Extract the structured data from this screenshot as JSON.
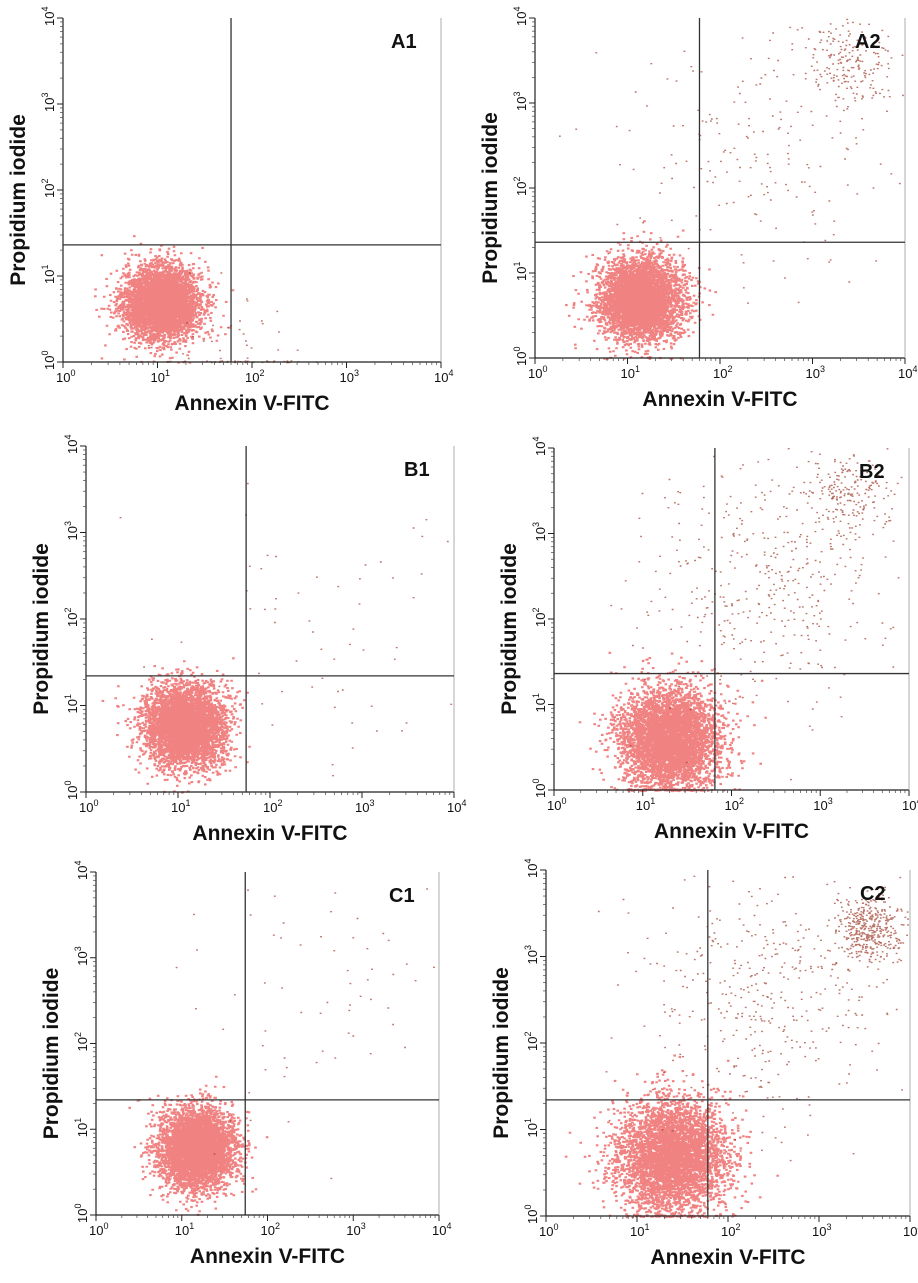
{
  "figure": {
    "x_axis_label": "Annexin V-FITC",
    "y_axis_label": "Propidium iodide"
  },
  "chart_data": [
    {
      "type": "scatter",
      "label": "A1",
      "xlabel": "Annexin V-FITC",
      "ylabel": "Propidium iodide",
      "xscale": "log",
      "yscale": "log",
      "xlim": [
        1,
        10000
      ],
      "ylim": [
        1,
        10000
      ],
      "xticks": [
        "10^0",
        "10^1",
        "10^2",
        "10^3",
        "10^4"
      ],
      "yticks": [
        "10^0",
        "10^1",
        "10^2",
        "10^3",
        "10^4"
      ],
      "quadrant_gate": {
        "x": 60,
        "y": 23
      },
      "populations": [
        {
          "center": [
            11,
            5
          ],
          "spread_decades": 0.2,
          "density": "very high"
        },
        {
          "center": [
            60,
            1.1
          ],
          "spread_decades": 0.35,
          "density": "trace"
        }
      ]
    },
    {
      "type": "scatter",
      "label": "A2",
      "xlabel": "Annexin V-FITC",
      "ylabel": "Propidium iodide",
      "xscale": "log",
      "yscale": "log",
      "xlim": [
        1,
        10000
      ],
      "ylim": [
        1,
        10000
      ],
      "xticks": [
        "10^0",
        "10^1",
        "10^2",
        "10^3",
        "10^4"
      ],
      "yticks": [
        "10^0",
        "10^1",
        "10^2",
        "10^3",
        "10^4"
      ],
      "quadrant_gate": {
        "x": 60,
        "y": 23
      },
      "populations": [
        {
          "center": [
            14,
            5
          ],
          "spread_decades": 0.22,
          "density": "very high"
        },
        {
          "center": [
            300,
            300
          ],
          "spread_decades": 0.6,
          "density": "low"
        },
        {
          "center": [
            2500,
            3000
          ],
          "spread_decades": 0.2,
          "density": "low"
        }
      ]
    },
    {
      "type": "scatter",
      "label": "B1",
      "xlabel": "Annexin V-FITC",
      "ylabel": "Propidium iodide",
      "xscale": "log",
      "yscale": "log",
      "xlim": [
        1,
        10000
      ],
      "ylim": [
        1,
        10000
      ],
      "xticks": [
        "10^0",
        "10^1",
        "10^2",
        "10^3",
        "10^4"
      ],
      "yticks": [
        "10^0",
        "10^1",
        "10^2",
        "10^3",
        "10^4"
      ],
      "quadrant_gate": {
        "x": 55,
        "y": 22
      },
      "populations": [
        {
          "center": [
            12,
            6
          ],
          "spread_decades": 0.22,
          "density": "very high"
        },
        {
          "center": [
            500,
            100
          ],
          "spread_decades": 0.8,
          "density": "trace"
        }
      ]
    },
    {
      "type": "scatter",
      "label": "B2",
      "xlabel": "Annexin V-FITC",
      "ylabel": "Propidium iodide",
      "xscale": "log",
      "yscale": "log",
      "xlim": [
        1,
        10000
      ],
      "ylim": [
        1,
        10000
      ],
      "xticks": [
        "10^0",
        "10^1",
        "10^2",
        "10^3",
        "10^4"
      ],
      "yticks": [
        "10^0",
        "10^1",
        "10^2",
        "10^3",
        "10^4"
      ],
      "quadrant_gate": {
        "x": 65,
        "y": 23
      },
      "populations": [
        {
          "center": [
            20,
            4
          ],
          "spread_decades": 0.28,
          "density": "very high"
        },
        {
          "center": [
            300,
            300
          ],
          "spread_decades": 0.6,
          "density": "moderate"
        },
        {
          "center": [
            2000,
            3000
          ],
          "spread_decades": 0.2,
          "density": "low"
        }
      ]
    },
    {
      "type": "scatter",
      "label": "C1",
      "xlabel": "Annexin V-FITC",
      "ylabel": "Propidium iodide",
      "xscale": "log",
      "yscale": "log",
      "xlim": [
        1,
        10000
      ],
      "ylim": [
        1,
        10000
      ],
      "xticks": [
        "10^0",
        "10^1",
        "10^2",
        "10^3",
        "10^4"
      ],
      "yticks": [
        "10^0",
        "10^1",
        "10^2",
        "10^3",
        "10^4"
      ],
      "quadrant_gate": {
        "x": 55,
        "y": 22
      },
      "populations": [
        {
          "center": [
            15,
            6
          ],
          "spread_decades": 0.22,
          "density": "very high"
        },
        {
          "center": [
            400,
            300
          ],
          "spread_decades": 0.7,
          "density": "trace"
        }
      ]
    },
    {
      "type": "scatter",
      "label": "C2",
      "xlabel": "Annexin V-FITC",
      "ylabel": "Propidium iodide",
      "xscale": "log",
      "yscale": "log",
      "xlim": [
        1,
        10000
      ],
      "ylim": [
        1,
        10000
      ],
      "xticks": [
        "10^0",
        "10^1",
        "10^2",
        "10^3",
        "10^4"
      ],
      "yticks": [
        "10^0",
        "10^1",
        "10^2",
        "10^3",
        "10^4"
      ],
      "quadrant_gate": {
        "x": 60,
        "y": 22
      },
      "populations": [
        {
          "center": [
            25,
            5
          ],
          "spread_decades": 0.3,
          "density": "very high"
        },
        {
          "center": [
            300,
            300
          ],
          "spread_decades": 0.6,
          "density": "moderate"
        },
        {
          "center": [
            3500,
            2200
          ],
          "spread_decades": 0.15,
          "density": "moderate"
        }
      ]
    }
  ],
  "colors": {
    "event_dense": "#e41b1b",
    "event_sparse": "#9e3a2a",
    "axis": "#222222"
  }
}
